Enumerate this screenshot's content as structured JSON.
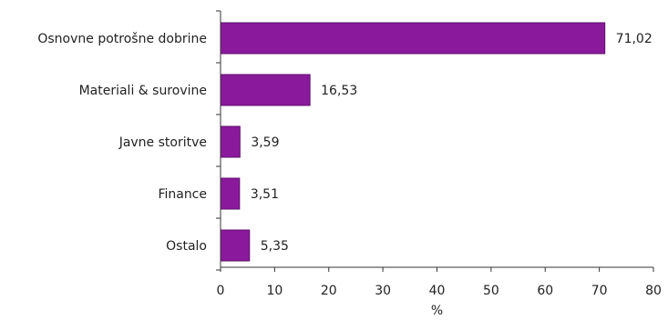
{
  "chart_data": {
    "type": "bar",
    "orientation": "horizontal",
    "categories": [
      "Osnovne potrošne dobrine",
      "Materiali & surovine",
      "Javne storitve",
      "Finance",
      "Ostalo"
    ],
    "values": [
      71.02,
      16.53,
      3.59,
      3.51,
      5.35
    ],
    "value_labels": [
      "71,02",
      "16,53",
      "3,59",
      "3,51",
      "5,35"
    ],
    "xlabel": "%",
    "ylabel": "",
    "xlim": [
      0,
      80
    ],
    "xticks": [
      0,
      10,
      20,
      30,
      40,
      50,
      60,
      70,
      80
    ],
    "grid": false,
    "bar_color": "#8a1a9b",
    "bar_edge_color": "#5e0f6b"
  }
}
